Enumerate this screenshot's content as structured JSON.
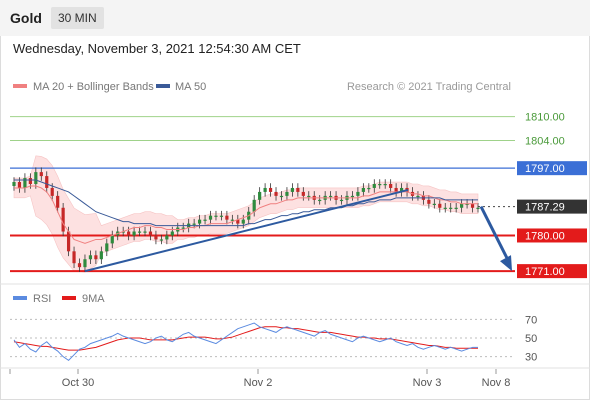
{
  "header": {
    "asset": "Gold",
    "timeframe": "30 MIN"
  },
  "timestamp": "Wednesday, November 3, 2021 12:54:30 AM CET",
  "copyright": "Research © 2021 Trading Central",
  "legend": {
    "ma20": "MA 20 + Bollinger Bands",
    "ma50": "MA 50",
    "rsi": "RSI",
    "ma9": "9MA"
  },
  "colors": {
    "ma20": "#f08080",
    "ma50": "#3a5a98",
    "bands": "#fde1e1",
    "resistance_green": "#9fd28a",
    "blue_line": "#3b6fd6",
    "support_red": "#e31b1b",
    "price_box": "#333333",
    "trend_arrow": "#2d5aa0",
    "rsi": "#5b8be0",
    "rsi_ma": "#e31b1b"
  },
  "chart_data": [
    {
      "type": "candlestick",
      "x_ticks": [
        "Oct 30",
        "Nov 2",
        "Nov 3",
        "Nov 8"
      ],
      "ylim": [
        1768,
        1818
      ],
      "levels": [
        {
          "value": 1810.0,
          "label": "1810.00",
          "style": "green"
        },
        {
          "value": 1804.0,
          "label": "1804.00",
          "style": "green"
        },
        {
          "value": 1797.0,
          "label": "1797.00",
          "style": "blue"
        },
        {
          "value": 1787.29,
          "label": "1787.29",
          "style": "last-price"
        },
        {
          "value": 1780.0,
          "label": "1780.00",
          "style": "red"
        },
        {
          "value": 1771.0,
          "label": "1771.00",
          "style": "red"
        }
      ],
      "close": [
        1793.5,
        1792,
        1794.5,
        1793,
        1796,
        1795,
        1792,
        1790,
        1787,
        1781,
        1776,
        1773,
        1772,
        1774,
        1775,
        1774,
        1776,
        1778,
        1780,
        1781,
        1781,
        1780,
        1781,
        1781,
        1781,
        1780,
        1779,
        1779,
        1780,
        1781,
        1782,
        1782,
        1783,
        1783,
        1784,
        1784,
        1785,
        1785,
        1785,
        1784,
        1784,
        1783,
        1784,
        1786,
        1789,
        1791,
        1792,
        1791,
        1790,
        1790,
        1791,
        1792,
        1791,
        1790,
        1790,
        1789,
        1789,
        1790,
        1790,
        1789,
        1789,
        1790,
        1790,
        1791,
        1792,
        1792,
        1793,
        1793,
        1793,
        1792,
        1791,
        1792,
        1791,
        1790,
        1790,
        1789,
        1788,
        1788,
        1787,
        1787,
        1787,
        1787,
        1788,
        1788,
        1787,
        1787
      ],
      "ma20": [
        1792,
        1792,
        1792,
        1792.5,
        1792.5,
        1792,
        1791,
        1789,
        1786,
        1783,
        1781,
        1779,
        1778.5,
        1778,
        1778.5,
        1779,
        1779,
        1779.5,
        1780,
        1780.5,
        1781,
        1781.5,
        1782,
        1782,
        1782.5,
        1782.5,
        1782,
        1782,
        1781.5,
        1781.5,
        1781.5,
        1781.5,
        1782,
        1782,
        1782.5,
        1782.5,
        1783,
        1783,
        1783,
        1783,
        1783.5,
        1784,
        1784.5,
        1785,
        1786,
        1787,
        1787.5,
        1788,
        1788,
        1788.5,
        1789,
        1789,
        1789.5,
        1789.5,
        1789.5,
        1789.5,
        1789.5,
        1789.5,
        1789.5,
        1789.5,
        1789.5,
        1789.5,
        1789.5,
        1789.5,
        1790,
        1790,
        1790.5,
        1791,
        1791,
        1791,
        1791,
        1791,
        1791,
        1790.5,
        1790.5,
        1790,
        1790,
        1789.5,
        1789,
        1789,
        1788.5,
        1788.5,
        1788,
        1788,
        1788,
        1788
      ],
      "ma50": [
        1794,
        1794,
        1794,
        1794,
        1794,
        1793.5,
        1793,
        1792.5,
        1792,
        1791.5,
        1791,
        1790,
        1789,
        1788,
        1787,
        1786,
        1785.5,
        1785,
        1784.5,
        1784,
        1783.5,
        1783.5,
        1783,
        1783,
        1783,
        1783,
        1782.5,
        1782.5,
        1782.5,
        1782.5,
        1782.5,
        1782.5,
        1782.5,
        1782.5,
        1782.5,
        1782.5,
        1782.5,
        1782.5,
        1782.5,
        1782.5,
        1782.5,
        1782.5,
        1782.5,
        1783,
        1783,
        1783.5,
        1784,
        1784,
        1784.5,
        1785,
        1785,
        1785.5,
        1785.5,
        1786,
        1786,
        1786.5,
        1786.5,
        1786.5,
        1787,
        1787,
        1787,
        1787.5,
        1787.5,
        1788,
        1788,
        1788.5,
        1788.5,
        1789,
        1789,
        1789,
        1789.5,
        1789.5,
        1789.5,
        1789.5,
        1789.5,
        1789.5,
        1789.5,
        1789.5,
        1789.5,
        1789,
        1789,
        1789,
        1789,
        1789,
        1789,
        1789
      ],
      "trendlines": [
        {
          "from": [
            13,
            1771
          ],
          "to": [
            89,
            1791.5
          ]
        }
      ],
      "projection_arrow": {
        "from": [
          85,
          1787.29
        ],
        "to": [
          98,
          1771
        ]
      }
    },
    {
      "type": "line",
      "name": "RSI",
      "ylim": [
        20,
        80
      ],
      "y_ticks": [
        70,
        50,
        30
      ],
      "rsi": [
        48,
        40,
        44,
        38,
        35,
        42,
        46,
        40,
        36,
        30,
        26,
        32,
        38,
        40,
        44,
        46,
        48,
        50,
        52,
        55,
        52,
        50,
        48,
        46,
        44,
        46,
        50,
        52,
        48,
        46,
        50,
        54,
        56,
        52,
        50,
        48,
        46,
        44,
        48,
        52,
        56,
        60,
        62,
        64,
        66,
        62,
        60,
        58,
        56,
        60,
        62,
        60,
        58,
        56,
        54,
        52,
        56,
        58,
        54,
        52,
        50,
        48,
        46,
        50,
        52,
        50,
        48,
        46,
        48,
        50,
        46,
        44,
        42,
        44,
        40,
        38,
        40,
        42,
        40,
        38,
        40,
        38,
        36,
        38,
        40,
        40
      ],
      "ma9": [
        46,
        45,
        44,
        43,
        42,
        41,
        41,
        40,
        39,
        38,
        37,
        37,
        37,
        38,
        39,
        40,
        42,
        44,
        46,
        48,
        49,
        50,
        50,
        50,
        49,
        48,
        48,
        48,
        48,
        48,
        49,
        50,
        51,
        51,
        51,
        51,
        50,
        49,
        49,
        50,
        51,
        53,
        55,
        57,
        59,
        61,
        62,
        62,
        62,
        61,
        61,
        60,
        60,
        59,
        58,
        57,
        56,
        56,
        56,
        55,
        54,
        53,
        52,
        51,
        51,
        50,
        50,
        49,
        49,
        49,
        48,
        47,
        46,
        45,
        44,
        43,
        42,
        42,
        41,
        40,
        40,
        39,
        39,
        39,
        39,
        39
      ]
    }
  ]
}
